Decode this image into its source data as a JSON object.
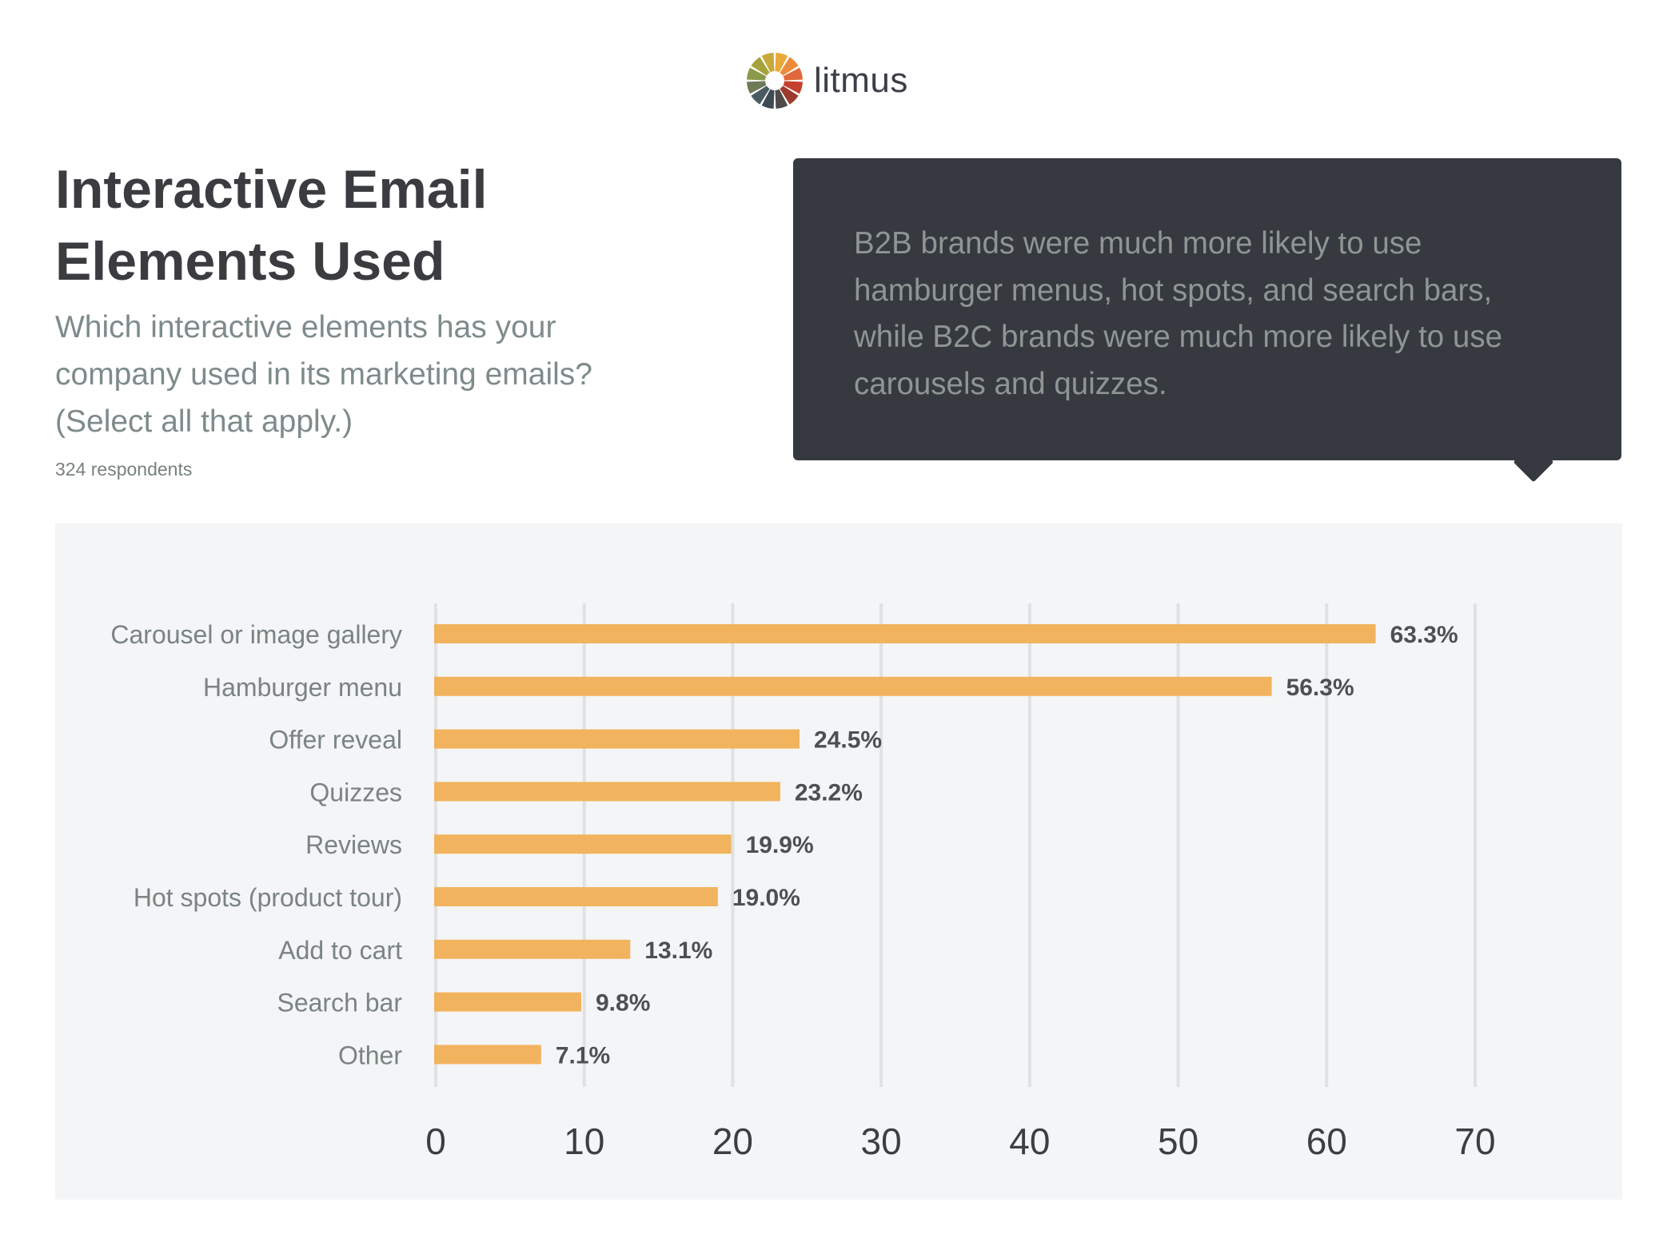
{
  "logo": {
    "text": "litmus",
    "icon": "litmus-color-wheel-icon",
    "wheel_colors": [
      "#e8a93a",
      "#eb8c3c",
      "#e0673a",
      "#c5412f",
      "#9c3a2e",
      "#4f4a4a",
      "#3d4a52",
      "#4a5a60",
      "#6e7a58",
      "#8a9a4a",
      "#a7a23c",
      "#c8a93c"
    ]
  },
  "header": {
    "title": "Interactive Email Elements Used",
    "subtitle": "Which interactive elements has your company used in its marketing emails? (Select all that apply.)",
    "respondents": "324 respondents"
  },
  "callout": {
    "text": "B2B brands were much more likely to use hamburger menus, hot spots, and search bars, while B2C brands were much more likely to use carousels and quizzes."
  },
  "colors": {
    "bar": "#f2b35e",
    "grid": "#dfe1e2",
    "panel": "#f4f5f6",
    "callout_bg": "#363a40"
  },
  "chart_data": {
    "type": "bar",
    "orientation": "horizontal",
    "categories": [
      "Carousel or image gallery",
      "Hamburger menu",
      "Offer reveal",
      "Quizzes",
      "Reviews",
      "Hot spots (product tour)",
      "Add to cart",
      "Search bar",
      "Other"
    ],
    "values": [
      63.3,
      56.3,
      24.5,
      23.2,
      19.9,
      19.0,
      13.1,
      9.8,
      7.1
    ],
    "value_labels": [
      "63.3%",
      "56.3%",
      "24.5%",
      "23.2%",
      "19.9%",
      "19.0%",
      "13.1%",
      "9.8%",
      "7.1%"
    ],
    "xlim": [
      0,
      70
    ],
    "x_ticks": [
      0,
      10,
      20,
      30,
      40,
      50,
      60,
      70
    ],
    "grid": true
  }
}
